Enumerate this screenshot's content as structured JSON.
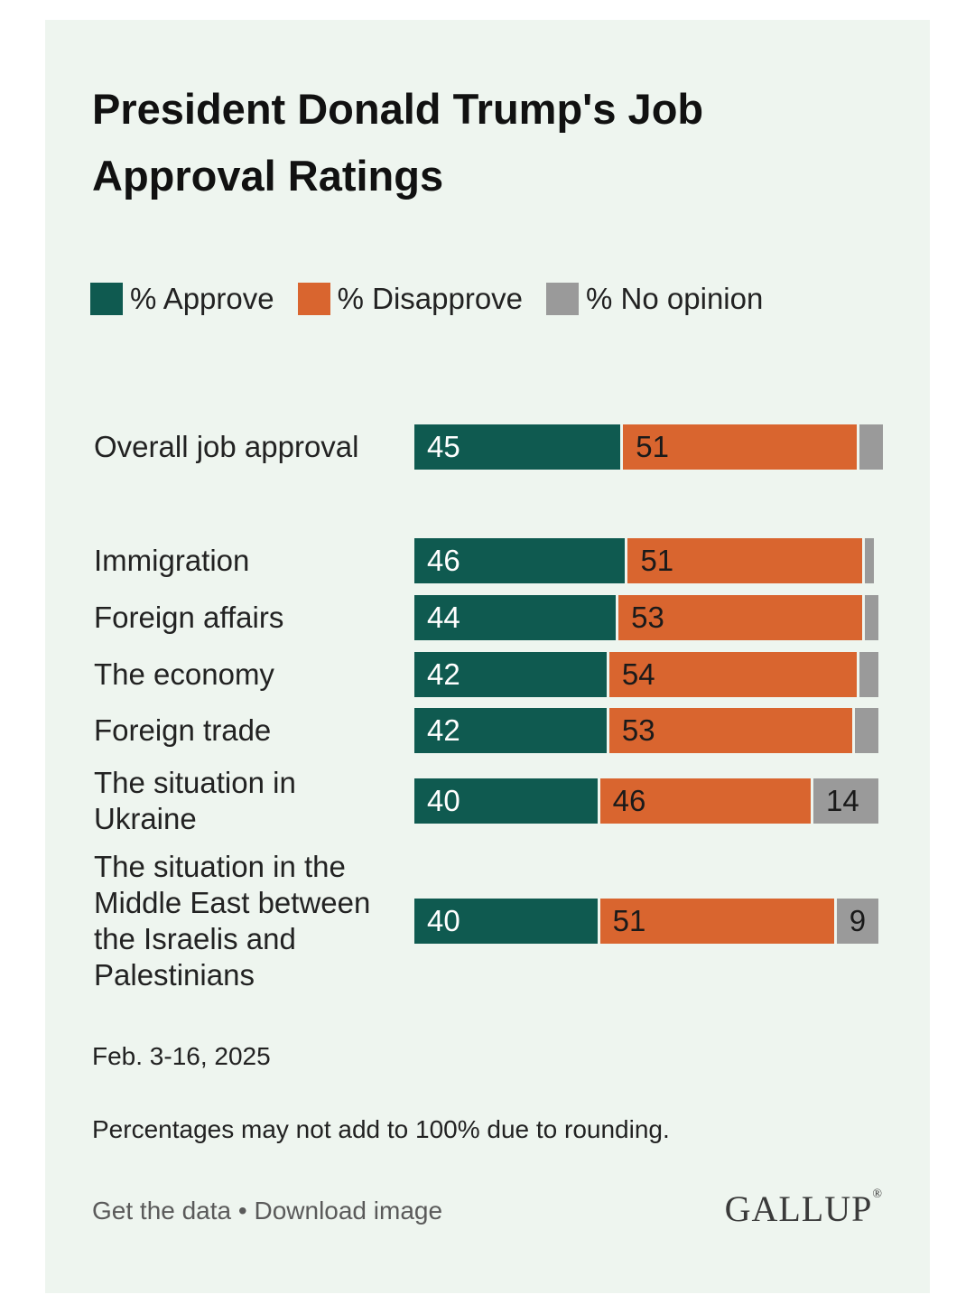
{
  "title": "President Donald Trump's Job Approval Ratings",
  "colors": {
    "approve": "#0f5a50",
    "disapprove": "#d9652f",
    "no_opinion": "#9a9a9a",
    "background": "#eef5ef"
  },
  "legend": [
    {
      "label": "% Approve",
      "color": "#0f5a50"
    },
    {
      "label": "% Disapprove",
      "color": "#d9652f"
    },
    {
      "label": "% No opinion",
      "color": "#9a9a9a"
    }
  ],
  "chart_data": {
    "type": "bar",
    "orientation": "horizontal",
    "stacked": true,
    "categories": [
      "Overall job approval",
      "Immigration",
      "Foreign affairs",
      "The economy",
      "Foreign trade",
      "The situation in Ukraine",
      "The situation in the Middle East between the Israelis and Palestinians"
    ],
    "series": [
      {
        "name": "% Approve",
        "values": [
          45,
          46,
          44,
          42,
          42,
          40,
          40
        ]
      },
      {
        "name": "% Disapprove",
        "values": [
          51,
          51,
          53,
          54,
          53,
          46,
          51
        ]
      },
      {
        "name": "% No opinion",
        "values": [
          5,
          2,
          3,
          4,
          5,
          14,
          9
        ]
      }
    ],
    "data_labels": [
      [
        "45",
        "51",
        ""
      ],
      [
        "46",
        "51",
        ""
      ],
      [
        "44",
        "53",
        ""
      ],
      [
        "42",
        "54",
        ""
      ],
      [
        "42",
        "53",
        ""
      ],
      [
        "40",
        "46",
        "14"
      ],
      [
        "40",
        "51",
        "9"
      ]
    ],
    "xlim": [
      0,
      100
    ],
    "legend_position": "top-left",
    "grid": false
  },
  "footnotes": {
    "date": "Feb. 3-16, 2025",
    "note": "Percentages may not add to 100% due to rounding."
  },
  "footer": {
    "get_data": "Get the data",
    "separator": "•",
    "download": "Download image",
    "logo": "GALLUP",
    "logo_mark": "®"
  }
}
